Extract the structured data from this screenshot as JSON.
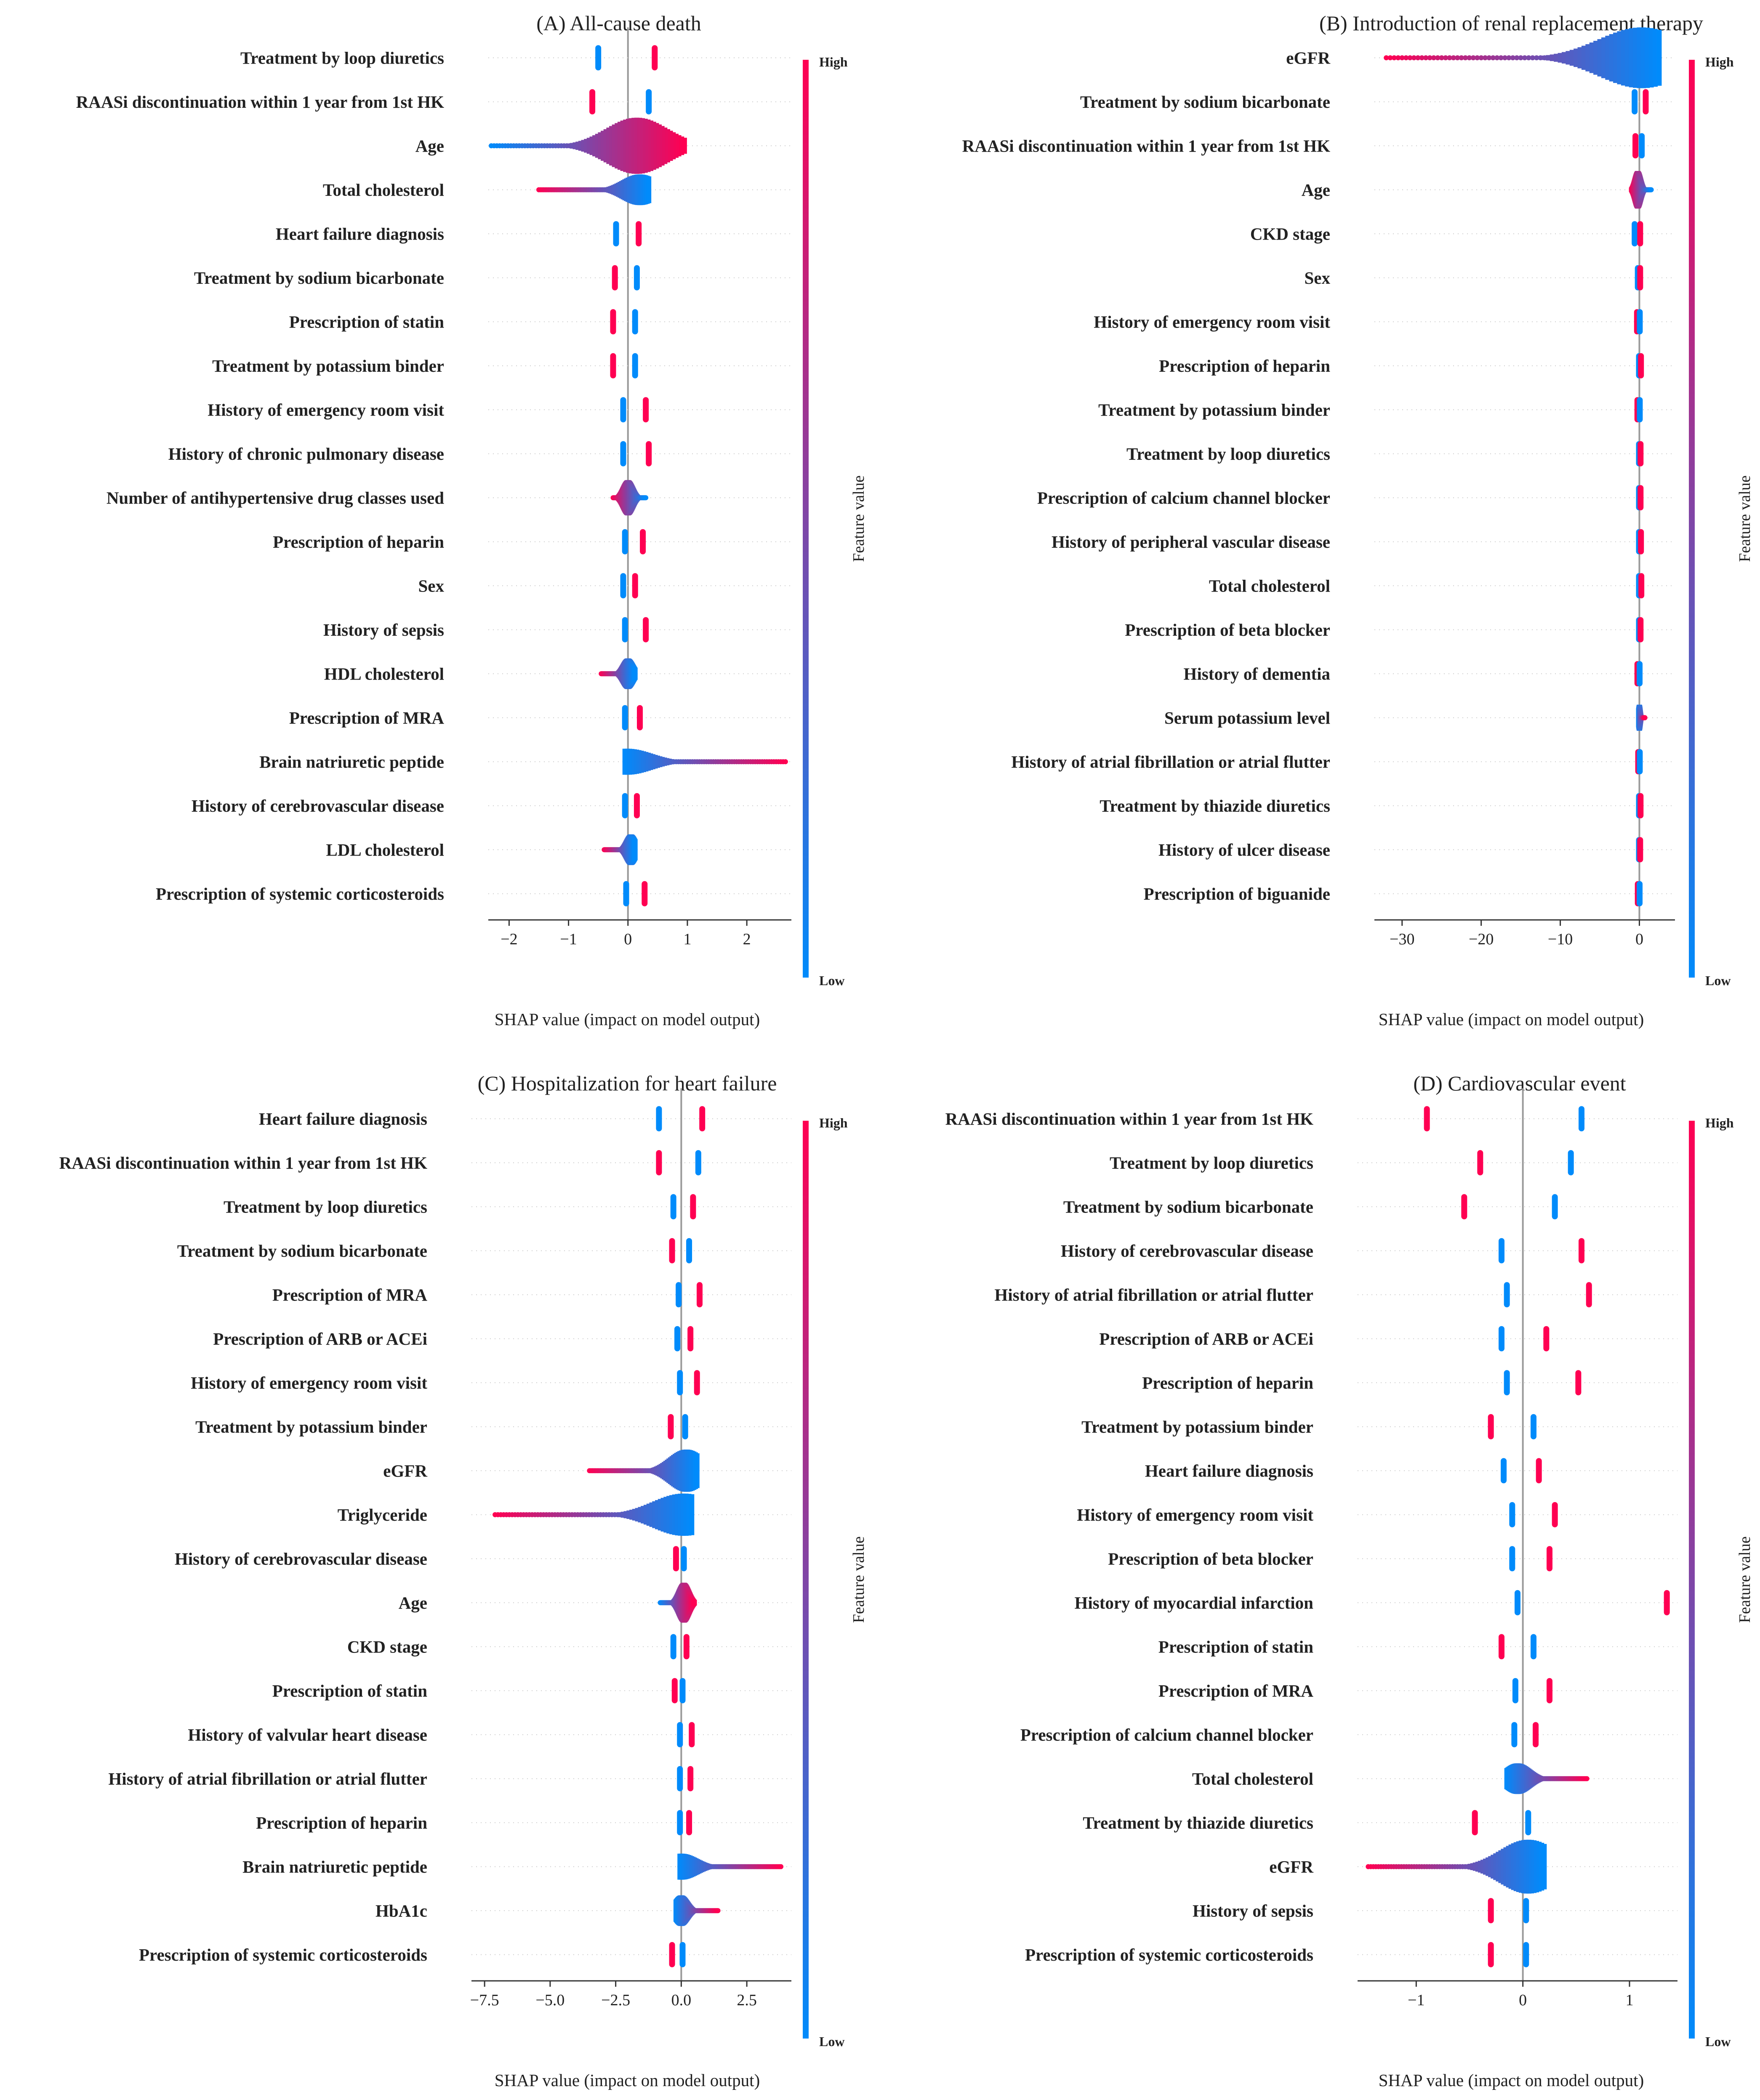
{
  "colors": {
    "low": "#008bfb",
    "high": "#ff0052",
    "zero_line": "#999999",
    "grid": "#cccccc",
    "axis": "#333333"
  },
  "colorbar": {
    "high_label": "High",
    "low_label": "Low",
    "title": "Feature value"
  },
  "chart_data": [
    {
      "type": "scatter",
      "subtype": "shap-beeswarm",
      "title": "(A) All-cause death",
      "xlabel": "SHAP value (impact on model output)",
      "xlim": [
        -2.35,
        2.75
      ],
      "xticks": [
        -2,
        -1,
        0,
        1,
        2
      ],
      "xtick_labels": [
        "−2",
        "−1",
        "0",
        "1",
        "2"
      ],
      "features": [
        {
          "name": "Treatment by loop diuretics",
          "kind": "binary",
          "neg": -0.5,
          "pos": 0.45,
          "negColor": 0,
          "posColor": 1
        },
        {
          "name": "RAASi discontinuation within 1 year from 1st HK",
          "kind": "binary",
          "neg": -0.6,
          "pos": 0.35,
          "negColor": 1,
          "posColor": 0
        },
        {
          "name": "Age",
          "kind": "continuous",
          "min": -2.3,
          "max": 0.95,
          "center": 0.15,
          "direction": 1,
          "width": 0.85
        },
        {
          "name": "Total cholesterol",
          "kind": "continuous",
          "min": -1.5,
          "max": 0.35,
          "center": 0.2,
          "direction": -1,
          "width": 0.3
        },
        {
          "name": "Heart failure diagnosis",
          "kind": "binary",
          "neg": -0.2,
          "pos": 0.18,
          "negColor": 0,
          "posColor": 1
        },
        {
          "name": "Treatment by sodium bicarbonate",
          "kind": "binary",
          "neg": -0.22,
          "pos": 0.15,
          "negColor": 1,
          "posColor": 0
        },
        {
          "name": "Prescription of statin",
          "kind": "binary",
          "neg": -0.25,
          "pos": 0.12,
          "negColor": 1,
          "posColor": 0
        },
        {
          "name": "Treatment by potassium binder",
          "kind": "binary",
          "neg": -0.25,
          "pos": 0.12,
          "negColor": 1,
          "posColor": 0
        },
        {
          "name": "History of emergency room visit",
          "kind": "binary",
          "neg": -0.08,
          "pos": 0.3,
          "negColor": 0,
          "posColor": 1
        },
        {
          "name": "History of chronic pulmonary disease",
          "kind": "binary",
          "neg": -0.08,
          "pos": 0.35,
          "negColor": 0,
          "posColor": 1
        },
        {
          "name": "Number of antihypertensive drug classes used",
          "kind": "continuous",
          "min": -0.25,
          "max": 0.3,
          "center": 0.0,
          "direction": -1,
          "width": 0.4
        },
        {
          "name": "Prescription of heparin",
          "kind": "binary",
          "neg": -0.05,
          "pos": 0.25,
          "negColor": 0,
          "posColor": 1
        },
        {
          "name": "Sex",
          "kind": "binary",
          "neg": -0.08,
          "pos": 0.12,
          "negColor": 0,
          "posColor": 1
        },
        {
          "name": "History of sepsis",
          "kind": "binary",
          "neg": -0.05,
          "pos": 0.3,
          "negColor": 0,
          "posColor": 1
        },
        {
          "name": "HDL cholesterol",
          "kind": "continuous",
          "min": -0.45,
          "max": 0.12,
          "center": 0.0,
          "direction": -1,
          "width": 0.3
        },
        {
          "name": "Prescription of MRA",
          "kind": "binary",
          "neg": -0.05,
          "pos": 0.2,
          "negColor": 0,
          "posColor": 1
        },
        {
          "name": "Brain natriuretic peptide",
          "kind": "continuous",
          "min": -0.05,
          "max": 2.65,
          "center": -0.02,
          "direction": 1,
          "width": 0.2
        },
        {
          "name": "History of cerebrovascular disease",
          "kind": "binary",
          "neg": -0.05,
          "pos": 0.15,
          "negColor": 0,
          "posColor": 1
        },
        {
          "name": "LDL cholesterol",
          "kind": "continuous",
          "min": -0.4,
          "max": 0.12,
          "center": 0.05,
          "direction": -1,
          "width": 0.3
        },
        {
          "name": "Prescription of systemic corticosteroids",
          "kind": "binary",
          "neg": -0.03,
          "pos": 0.28,
          "negColor": 0,
          "posColor": 1
        }
      ]
    },
    {
      "type": "scatter",
      "subtype": "shap-beeswarm",
      "title": "(B) Introduction of renal replacement therapy",
      "xlabel": "SHAP value (impact on model output)",
      "xlim": [
        -33.5,
        4.5
      ],
      "xticks": [
        -30,
        -20,
        -10,
        0
      ],
      "xtick_labels": [
        "−30",
        "−20",
        "−10",
        "0"
      ],
      "features": [
        {
          "name": "eGFR",
          "kind": "continuous",
          "min": -32,
          "max": 2.5,
          "center": 0.3,
          "direction": -1,
          "width": 0.95
        },
        {
          "name": "Treatment by sodium bicarbonate",
          "kind": "binary",
          "neg": -0.6,
          "pos": 0.8,
          "negColor": 0,
          "posColor": 1
        },
        {
          "name": "RAASi discontinuation within 1 year from 1st HK",
          "kind": "binary",
          "neg": -0.5,
          "pos": 0.3,
          "negColor": 1,
          "posColor": 0
        },
        {
          "name": "Age",
          "kind": "continuous",
          "min": -1.0,
          "max": 1.5,
          "center": -0.2,
          "direction": -1,
          "width": 0.45
        },
        {
          "name": "CKD stage",
          "kind": "binary",
          "neg": -0.6,
          "pos": 0.1,
          "negColor": 0,
          "posColor": 1
        },
        {
          "name": "Sex",
          "kind": "binary",
          "neg": -0.2,
          "pos": 0.1,
          "negColor": 0,
          "posColor": 1
        },
        {
          "name": "History of emergency room visit",
          "kind": "binary",
          "neg": -0.3,
          "pos": 0.05,
          "negColor": 1,
          "posColor": 0
        },
        {
          "name": "Prescription of heparin",
          "kind": "binary",
          "neg": -0.05,
          "pos": 0.2,
          "negColor": 0,
          "posColor": 1
        },
        {
          "name": "Treatment by potassium binder",
          "kind": "binary",
          "neg": -0.25,
          "pos": 0.05,
          "negColor": 1,
          "posColor": 0
        },
        {
          "name": "Treatment by loop diuretics",
          "kind": "binary",
          "neg": -0.05,
          "pos": 0.15,
          "negColor": 0,
          "posColor": 1
        },
        {
          "name": "Prescription of calcium channel blocker",
          "kind": "binary",
          "neg": -0.05,
          "pos": 0.15,
          "negColor": 0,
          "posColor": 1
        },
        {
          "name": "History of peripheral vascular disease",
          "kind": "binary",
          "neg": -0.05,
          "pos": 0.2,
          "negColor": 0,
          "posColor": 1
        },
        {
          "name": "Total cholesterol",
          "kind": "binary",
          "neg": -0.05,
          "pos": 0.25,
          "negColor": 0,
          "posColor": 1
        },
        {
          "name": "Prescription of beta blocker",
          "kind": "binary",
          "neg": -0.05,
          "pos": 0.15,
          "negColor": 0,
          "posColor": 1
        },
        {
          "name": "History of dementia",
          "kind": "binary",
          "neg": -0.25,
          "pos": 0.03,
          "negColor": 1,
          "posColor": 0
        },
        {
          "name": "Serum potassium level",
          "kind": "continuous",
          "min": -0.1,
          "max": 0.7,
          "center": 0.0,
          "direction": 1,
          "width": 0.2
        },
        {
          "name": "History of atrial fibrillation or atrial flutter",
          "kind": "binary",
          "neg": -0.15,
          "pos": 0.05,
          "negColor": 1,
          "posColor": 0
        },
        {
          "name": "Treatment by thiazide diuretics",
          "kind": "binary",
          "neg": -0.05,
          "pos": 0.15,
          "negColor": 0,
          "posColor": 1
        },
        {
          "name": "History of ulcer disease",
          "kind": "binary",
          "neg": -0.05,
          "pos": 0.1,
          "negColor": 0,
          "posColor": 1
        },
        {
          "name": "Prescription of biguanide",
          "kind": "binary",
          "neg": -0.2,
          "pos": 0.03,
          "negColor": 1,
          "posColor": 0
        }
      ]
    },
    {
      "type": "scatter",
      "subtype": "shap-beeswarm",
      "title": "(C) Hospitalization for heart failure",
      "xlabel": "SHAP value (impact on model output)",
      "xlim": [
        -8.0,
        4.2
      ],
      "xticks": [
        -7.5,
        -5.0,
        -2.5,
        0.0,
        2.5
      ],
      "xtick_labels": [
        "−7.5",
        "−5.0",
        "−2.5",
        "0.0",
        "2.5"
      ],
      "features": [
        {
          "name": "Heart failure diagnosis",
          "kind": "binary",
          "neg": -0.85,
          "pos": 0.8,
          "negColor": 0,
          "posColor": 1
        },
        {
          "name": "RAASi discontinuation within 1 year from 1st HK",
          "kind": "binary",
          "neg": -0.85,
          "pos": 0.65,
          "negColor": 1,
          "posColor": 0
        },
        {
          "name": "Treatment by loop diuretics",
          "kind": "binary",
          "neg": -0.3,
          "pos": 0.45,
          "negColor": 0,
          "posColor": 1
        },
        {
          "name": "Treatment by sodium bicarbonate",
          "kind": "binary",
          "neg": -0.35,
          "pos": 0.3,
          "negColor": 1,
          "posColor": 0
        },
        {
          "name": "Prescription of MRA",
          "kind": "binary",
          "neg": -0.1,
          "pos": 0.7,
          "negColor": 0,
          "posColor": 1
        },
        {
          "name": "Prescription of ARB or ACEi",
          "kind": "binary",
          "neg": -0.15,
          "pos": 0.35,
          "negColor": 0,
          "posColor": 1
        },
        {
          "name": "History of emergency room visit",
          "kind": "binary",
          "neg": -0.05,
          "pos": 0.6,
          "negColor": 0,
          "posColor": 1
        },
        {
          "name": "Treatment by potassium binder",
          "kind": "binary",
          "neg": -0.4,
          "pos": 0.15,
          "negColor": 1,
          "posColor": 0
        },
        {
          "name": "eGFR",
          "kind": "continuous",
          "min": -3.5,
          "max": 0.6,
          "center": 0.2,
          "direction": -1,
          "width": 0.55
        },
        {
          "name": "Triglyceride",
          "kind": "continuous",
          "min": -7.1,
          "max": 0.4,
          "center": 0.1,
          "direction": -1,
          "width": 0.55
        },
        {
          "name": "History of cerebrovascular disease",
          "kind": "binary",
          "neg": -0.2,
          "pos": 0.1,
          "negColor": 1,
          "posColor": 0
        },
        {
          "name": "Age",
          "kind": "continuous",
          "min": -0.8,
          "max": 0.5,
          "center": 0.1,
          "direction": 1,
          "width": 0.5
        },
        {
          "name": "CKD stage",
          "kind": "binary",
          "neg": -0.3,
          "pos": 0.2,
          "negColor": 0,
          "posColor": 1
        },
        {
          "name": "Prescription of statin",
          "kind": "binary",
          "neg": -0.25,
          "pos": 0.05,
          "negColor": 1,
          "posColor": 0
        },
        {
          "name": "History of valvular heart disease",
          "kind": "binary",
          "neg": -0.05,
          "pos": 0.4,
          "negColor": 0,
          "posColor": 1
        },
        {
          "name": "History of atrial fibrillation or atrial flutter",
          "kind": "binary",
          "neg": -0.05,
          "pos": 0.35,
          "negColor": 0,
          "posColor": 1
        },
        {
          "name": "Prescription of heparin",
          "kind": "binary",
          "neg": -0.05,
          "pos": 0.3,
          "negColor": 0,
          "posColor": 1
        },
        {
          "name": "Brain natriuretic peptide",
          "kind": "continuous",
          "min": -0.05,
          "max": 3.8,
          "center": 0.0,
          "direction": 1,
          "width": 0.2
        },
        {
          "name": "HbA1c",
          "kind": "continuous",
          "min": -0.2,
          "max": 1.4,
          "center": 0.0,
          "direction": 1,
          "width": 0.3
        },
        {
          "name": "Prescription of systemic corticosteroids",
          "kind": "binary",
          "neg": -0.35,
          "pos": 0.05,
          "negColor": 1,
          "posColor": 0
        }
      ]
    },
    {
      "type": "scatter",
      "subtype": "shap-beeswarm",
      "title": "(D) Cardiovascular event",
      "xlabel": "SHAP value (impact on model output)",
      "xlim": [
        -1.55,
        1.45
      ],
      "xticks": [
        -1,
        0,
        1
      ],
      "xtick_labels": [
        "−1",
        "0",
        "1"
      ],
      "features": [
        {
          "name": "RAASi discontinuation within 1 year from 1st HK",
          "kind": "binary",
          "neg": -0.9,
          "pos": 0.55,
          "negColor": 1,
          "posColor": 0
        },
        {
          "name": "Treatment by loop diuretics",
          "kind": "binary",
          "neg": -0.4,
          "pos": 0.45,
          "negColor": 1,
          "posColor": 0
        },
        {
          "name": "Treatment by sodium bicarbonate",
          "kind": "binary",
          "neg": -0.55,
          "pos": 0.3,
          "negColor": 1,
          "posColor": 0
        },
        {
          "name": "History of cerebrovascular disease",
          "kind": "binary",
          "neg": -0.2,
          "pos": 0.55,
          "negColor": 0,
          "posColor": 1
        },
        {
          "name": "History of atrial fibrillation or atrial flutter",
          "kind": "binary",
          "neg": -0.15,
          "pos": 0.62,
          "negColor": 0,
          "posColor": 1
        },
        {
          "name": "Prescription of ARB or ACEi",
          "kind": "binary",
          "neg": -0.2,
          "pos": 0.22,
          "negColor": 0,
          "posColor": 1
        },
        {
          "name": "Prescription of heparin",
          "kind": "binary",
          "neg": -0.15,
          "pos": 0.52,
          "negColor": 0,
          "posColor": 1
        },
        {
          "name": "Treatment by potassium binder",
          "kind": "binary",
          "neg": -0.3,
          "pos": 0.1,
          "negColor": 1,
          "posColor": 0
        },
        {
          "name": "Heart failure diagnosis",
          "kind": "binary",
          "neg": -0.18,
          "pos": 0.15,
          "negColor": 0,
          "posColor": 1
        },
        {
          "name": "History of emergency room visit",
          "kind": "binary",
          "neg": -0.1,
          "pos": 0.3,
          "negColor": 0,
          "posColor": 1
        },
        {
          "name": "Prescription of beta blocker",
          "kind": "binary",
          "neg": -0.1,
          "pos": 0.25,
          "negColor": 0,
          "posColor": 1
        },
        {
          "name": "History of myocardial infarction",
          "kind": "binary",
          "neg": -0.05,
          "pos": 1.35,
          "negColor": 0,
          "posColor": 1
        },
        {
          "name": "Prescription of statin",
          "kind": "binary",
          "neg": -0.2,
          "pos": 0.1,
          "negColor": 1,
          "posColor": 0
        },
        {
          "name": "Prescription of MRA",
          "kind": "binary",
          "neg": -0.07,
          "pos": 0.25,
          "negColor": 0,
          "posColor": 1
        },
        {
          "name": "Prescription of calcium channel blocker",
          "kind": "binary",
          "neg": -0.08,
          "pos": 0.12,
          "negColor": 0,
          "posColor": 1
        },
        {
          "name": "Total cholesterol",
          "kind": "continuous",
          "min": -0.15,
          "max": 0.6,
          "center": -0.05,
          "direction": 1,
          "width": 0.3
        },
        {
          "name": "Treatment by thiazide diuretics",
          "kind": "binary",
          "neg": -0.45,
          "pos": 0.05,
          "negColor": 1,
          "posColor": 0
        },
        {
          "name": "eGFR",
          "kind": "continuous",
          "min": -1.45,
          "max": 0.2,
          "center": 0.05,
          "direction": -1,
          "width": 0.8
        },
        {
          "name": "History of sepsis",
          "kind": "binary",
          "neg": -0.3,
          "pos": 0.03,
          "negColor": 1,
          "posColor": 0
        },
        {
          "name": "Prescription of systemic corticosteroids",
          "kind": "binary",
          "neg": -0.3,
          "pos": 0.03,
          "negColor": 1,
          "posColor": 0
        }
      ]
    }
  ]
}
